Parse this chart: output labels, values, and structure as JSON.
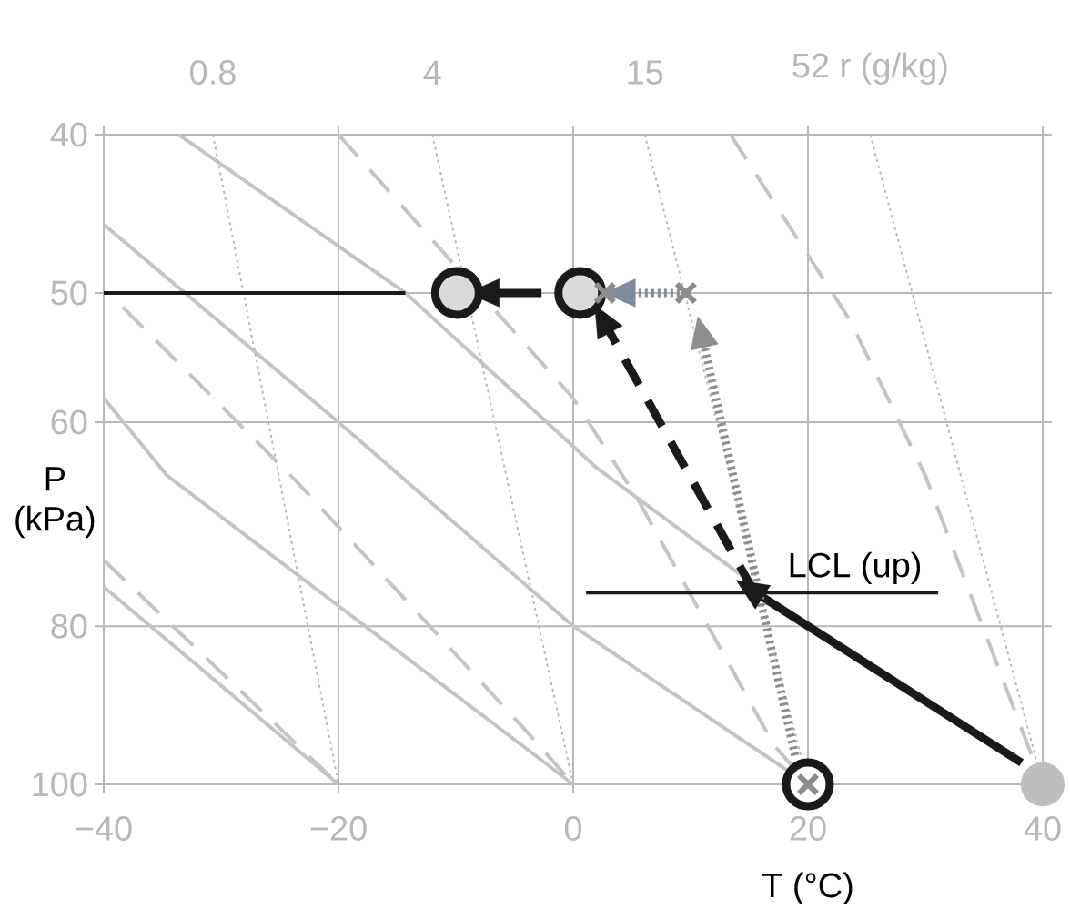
{
  "chart_data": {
    "type": "line",
    "xlabel": "T (°C)",
    "ylabel": "P (kPa)",
    "xlim": [
      -40,
      40
    ],
    "ylim": [
      100,
      40
    ],
    "log": true,
    "grid": true,
    "xticks": [
      {
        "value": -40,
        "label": "−40"
      },
      {
        "value": -20,
        "label": "−20"
      },
      0,
      20,
      40
    ],
    "yticks": [
      40,
      50,
      60,
      80,
      100
    ],
    "annotations": [
      {
        "text": "LCL (up)",
        "x": 24,
        "y": 76.3
      }
    ],
    "series": [
      {
        "x": [
          -33.6,
          -14.3,
          2,
          16
        ],
        "values": [
          40,
          50,
          64,
          76
        ],
        "color": "#c4c4c4",
        "line_style": "solid"
      },
      {
        "x": [
          -40,
          -20,
          0,
          20
        ],
        "values": [
          45.4,
          60,
          80,
          100
        ],
        "color": "#c4c4c4",
        "line_style": "solid"
      },
      {
        "x": [
          -40,
          -34.6,
          0
        ],
        "values": [
          58,
          64.7,
          100
        ],
        "color": "#c4c4c4",
        "line_style": "solid"
      },
      {
        "x": [
          -40,
          -20
        ],
        "values": [
          75.7,
          100
        ],
        "color": "#c4c4c4",
        "line_style": "solid"
      },
      {
        "x": [
          -20,
          0,
          5.5,
          17.1,
          20
        ],
        "values": [
          40,
          58,
          66.9,
          94.6,
          100
        ],
        "color": "#c4c4c4",
        "line_style": "dashed"
      },
      {
        "x": [
          13.4,
          23.6,
          30,
          40
        ],
        "values": [
          40,
          52,
          64.7,
          100
        ],
        "color": "#c4c4c4",
        "line_style": "dashed"
      },
      {
        "x": [
          -38.4,
          -23.6,
          -3.8,
          0
        ],
        "values": [
          51,
          65.2,
          93.1,
          100
        ],
        "color": "#c4c4c4",
        "line_style": "dashed"
      },
      {
        "x": [
          -40,
          -20
        ],
        "values": [
          72.9,
          100
        ],
        "color": "#c4c4c4",
        "line_style": "dashed"
      },
      {
        "name": "0.8",
        "x": [
          -30.7,
          -20
        ],
        "values": [
          40,
          100
        ],
        "color": "#b8b8b8",
        "line_style": "dotted"
      },
      {
        "name": "4",
        "x": [
          -12,
          0
        ],
        "values": [
          40,
          100
        ],
        "color": "#b8b8b8",
        "line_style": "dotted"
      },
      {
        "name": "15",
        "x": [
          6.1,
          20
        ],
        "values": [
          40,
          100
        ],
        "color": "#b8b8b8",
        "line_style": "dotted"
      },
      {
        "name": "52 r (g/kg)",
        "x": [
          25.3,
          40
        ],
        "values": [
          40,
          100
        ],
        "color": "#b8b8b8",
        "line_style": "dotted"
      },
      {
        "x": [
          -40,
          -14.3
        ],
        "values": [
          50,
          50
        ],
        "color": "#1a1a1a",
        "line_style": "solid"
      },
      {
        "x": [
          1.1,
          31.1
        ],
        "values": [
          76.3,
          76.3
        ],
        "color": "#1a1a1a",
        "line_style": "solid"
      },
      {
        "x": [
          38.2,
          15.4
        ],
        "values": [
          97,
          76.2
        ],
        "color": "#1a1a1a",
        "line_style": "solid",
        "marker": "triangle"
      },
      {
        "x": [
          15.4,
          2.7
        ],
        "values": [
          76.2,
          52.2
        ],
        "color": "#1a1a1a",
        "line_style": "dashed",
        "marker": "triangle"
      },
      {
        "x": [
          18.9,
          11
        ],
        "values": [
          96,
          53.2
        ],
        "color": "#8e8e8e",
        "line_style": "dotted",
        "marker": "triangle"
      },
      {
        "x": [
          9.6,
          4.4
        ],
        "values": [
          50,
          50
        ],
        "color": "#7f8c99",
        "line_style": "dotted",
        "marker": "triangle"
      },
      {
        "x": [
          -2.7,
          -7.2
        ],
        "values": [
          50,
          50
        ],
        "color": "#1a1a1a",
        "line_style": "solid",
        "marker": "triangle"
      },
      {
        "type": "scatter",
        "x": [
          0.6,
          -9.9
        ],
        "values": [
          50,
          50
        ],
        "color": "#1a1a1a",
        "colors": [
          "#d9dadb",
          "#d9dadb"
        ],
        "marker": "circle"
      },
      {
        "type": "scatter",
        "x": [
          20
        ],
        "values": [
          100
        ],
        "color": "#1a1a1a",
        "colors": [
          "#ffffff"
        ],
        "marker": "circle"
      },
      {
        "type": "scatter",
        "x": [
          40
        ],
        "values": [
          100
        ],
        "color": "#bdbec0",
        "marker": "circle"
      },
      {
        "type": "scatter",
        "x": [
          2.7,
          9.6,
          20
        ],
        "values": [
          50,
          50,
          100
        ],
        "color": "#8c8c8c",
        "marker": "cross"
      }
    ]
  }
}
